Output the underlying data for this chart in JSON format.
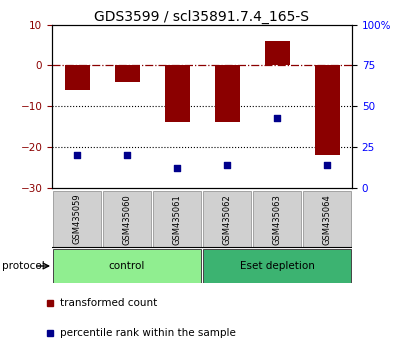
{
  "title": "GDS3599 / scl35891.7.4_165-S",
  "samples": [
    "GSM435059",
    "GSM435060",
    "GSM435061",
    "GSM435062",
    "GSM435063",
    "GSM435064"
  ],
  "red_bars": [
    -6.0,
    -4.0,
    -14.0,
    -14.0,
    6.0,
    -22.0
  ],
  "blue_squares_pct": [
    20,
    20,
    12,
    14,
    43,
    14
  ],
  "ylim_left": [
    -30,
    10
  ],
  "ylim_right": [
    0,
    100
  ],
  "hline_y": 0,
  "dotted_lines": [
    -10,
    -20
  ],
  "groups": [
    {
      "label": "control",
      "samples": [
        0,
        1,
        2
      ],
      "color": "#90EE90"
    },
    {
      "label": "Eset depletion",
      "samples": [
        3,
        4,
        5
      ],
      "color": "#3CB371"
    }
  ],
  "protocol_label": "protocol",
  "legend_red_label": "transformed count",
  "legend_blue_label": "percentile rank within the sample",
  "red_color": "#8B0000",
  "blue_color": "#00008B",
  "bar_width": 0.5,
  "title_fontsize": 10,
  "tick_fontsize": 7.5,
  "label_fontsize": 7.5
}
